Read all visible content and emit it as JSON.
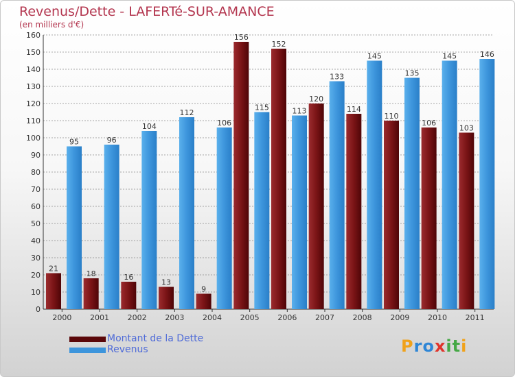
{
  "chart_data": {
    "type": "bar",
    "title": "Revenus/Dette - LAFERTé-SUR-AMANCE",
    "subtitle": "(en milliers d'€)",
    "categories": [
      "2000",
      "2001",
      "2002",
      "2003",
      "2004",
      "2005",
      "2006",
      "2007",
      "2008",
      "2009",
      "2010",
      "2011"
    ],
    "series": [
      {
        "name": "Montant de la Dette",
        "color": "#7a0f12",
        "values": [
          21,
          18,
          16,
          13,
          9,
          156,
          152,
          120,
          114,
          110,
          106,
          103
        ]
      },
      {
        "name": "Revenus",
        "color": "#3d95dc",
        "values": [
          95,
          96,
          104,
          112,
          106,
          115,
          113,
          133,
          145,
          135,
          145,
          146
        ]
      }
    ],
    "ylim": [
      0,
      160
    ],
    "yticks": [
      0,
      10,
      20,
      30,
      40,
      50,
      60,
      70,
      80,
      90,
      100,
      110,
      120,
      130,
      140,
      150,
      160
    ],
    "grid": true,
    "legend": "bottom-left",
    "xlabel": "",
    "ylabel": ""
  },
  "logo": {
    "text": "Proxiti",
    "letters": [
      {
        "ch": "P",
        "color": "#f0a21b"
      },
      {
        "ch": "r",
        "color": "#2e86d6"
      },
      {
        "ch": "o",
        "color": "#2e86d6"
      },
      {
        "ch": "x",
        "color": "#e0342b"
      },
      {
        "ch": "i",
        "color": "#45a845"
      },
      {
        "ch": "t",
        "color": "#45a845"
      },
      {
        "ch": "i",
        "color": "#f0a21b"
      }
    ]
  }
}
